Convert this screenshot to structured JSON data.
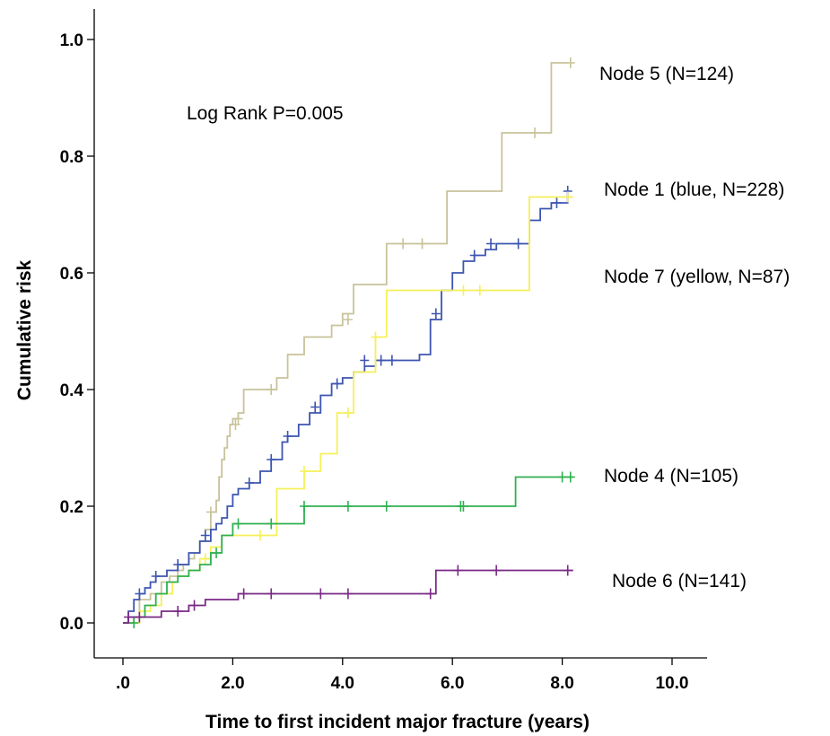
{
  "chart_data": {
    "type": "line",
    "title": "",
    "xlabel": "Time to first incident major fracture (years)",
    "ylabel": "Cumulative risk",
    "xlim": [
      -0.5,
      11
    ],
    "ylim": [
      -0.05,
      1.06
    ],
    "x_ticks": [
      0,
      2,
      4,
      6,
      8,
      10
    ],
    "x_tick_labels": [
      ".0",
      "2.0",
      "4.0",
      "6.0",
      "8.0",
      "10.0"
    ],
    "y_ticks": [
      0,
      0.2,
      0.4,
      0.6,
      0.8,
      1.0
    ],
    "y_tick_labels": [
      "0.0",
      "0.2",
      "0.4",
      "0.6",
      "0.8",
      "1.0"
    ],
    "grid": false,
    "annotation": "Log Rank P=0.005",
    "series": [
      {
        "name": "Node 5 (N=124)",
        "color": "#c8c39a",
        "x": [
          0,
          0.3,
          0.5,
          0.7,
          0.85,
          1.0,
          1.1,
          1.2,
          1.3,
          1.4,
          1.5,
          1.6,
          1.7,
          1.75,
          1.8,
          1.85,
          1.9,
          1.95,
          2.0,
          2.1,
          2.2,
          2.8,
          3.0,
          3.3,
          3.8,
          4.0,
          4.2,
          4.8,
          5.0,
          5.6,
          5.9,
          6.5,
          6.9,
          7.05,
          7.3,
          7.8,
          8.1
        ],
        "y": [
          0,
          0.04,
          0.05,
          0.07,
          0.08,
          0.09,
          0.1,
          0.11,
          0.12,
          0.14,
          0.16,
          0.19,
          0.21,
          0.25,
          0.28,
          0.3,
          0.32,
          0.34,
          0.35,
          0.36,
          0.4,
          0.42,
          0.46,
          0.49,
          0.51,
          0.53,
          0.58,
          0.65,
          0.65,
          0.65,
          0.74,
          0.74,
          0.84,
          0.84,
          0.84,
          0.96,
          0.96
        ],
        "censored": [
          [
            1.6,
            0.19
          ],
          [
            2.05,
            0.34
          ],
          [
            2.1,
            0.35
          ],
          [
            2.7,
            0.4
          ],
          [
            4.1,
            0.52
          ],
          [
            5.1,
            0.65
          ],
          [
            5.45,
            0.65
          ],
          [
            7.5,
            0.84
          ],
          [
            8.15,
            0.96
          ]
        ],
        "label": "Node 5 (N=124)"
      },
      {
        "name": "Node 1 (blue, N=228)",
        "color": "#3d55b0",
        "x": [
          0,
          0.1,
          0.2,
          0.3,
          0.4,
          0.5,
          0.6,
          0.8,
          1.0,
          1.2,
          1.4,
          1.6,
          1.7,
          1.8,
          1.9,
          2.0,
          2.1,
          2.3,
          2.5,
          2.7,
          2.9,
          3.0,
          3.2,
          3.4,
          3.6,
          3.8,
          4.0,
          4.2,
          4.4,
          4.6,
          5.0,
          5.4,
          5.6,
          5.8,
          6.0,
          6.2,
          6.4,
          6.6,
          6.8,
          7.0,
          7.4,
          7.6,
          7.8,
          8.0,
          8.1
        ],
        "y": [
          0,
          0.02,
          0.04,
          0.05,
          0.06,
          0.07,
          0.08,
          0.09,
          0.1,
          0.12,
          0.14,
          0.16,
          0.17,
          0.18,
          0.2,
          0.22,
          0.23,
          0.24,
          0.26,
          0.28,
          0.31,
          0.32,
          0.34,
          0.36,
          0.39,
          0.41,
          0.42,
          0.43,
          0.44,
          0.45,
          0.45,
          0.46,
          0.52,
          0.57,
          0.6,
          0.62,
          0.63,
          0.64,
          0.65,
          0.65,
          0.69,
          0.71,
          0.72,
          0.72,
          0.74
        ],
        "censored": [
          [
            0.3,
            0.05
          ],
          [
            0.6,
            0.08
          ],
          [
            1.0,
            0.1
          ],
          [
            1.5,
            0.15
          ],
          [
            2.3,
            0.24
          ],
          [
            2.7,
            0.28
          ],
          [
            3.0,
            0.32
          ],
          [
            3.5,
            0.37
          ],
          [
            3.9,
            0.41
          ],
          [
            4.4,
            0.45
          ],
          [
            4.7,
            0.45
          ],
          [
            4.9,
            0.45
          ],
          [
            5.7,
            0.53
          ],
          [
            6.4,
            0.63
          ],
          [
            6.7,
            0.65
          ],
          [
            7.2,
            0.65
          ],
          [
            7.9,
            0.72
          ],
          [
            8.1,
            0.74
          ]
        ],
        "label": "Node 1 (blue, N=228)"
      },
      {
        "name": "Node 7 (yellow, N=87)",
        "color": "#f5f05a",
        "x": [
          0,
          0.3,
          0.5,
          0.7,
          0.9,
          1.0,
          1.2,
          1.4,
          1.6,
          1.8,
          2.0,
          2.4,
          2.8,
          3.0,
          3.3,
          3.6,
          3.9,
          4.2,
          4.6,
          4.8,
          5.0,
          5.5,
          5.8,
          6.0,
          6.5,
          7.0,
          7.4,
          7.6,
          8.2
        ],
        "y": [
          0,
          0.02,
          0.03,
          0.05,
          0.07,
          0.08,
          0.09,
          0.11,
          0.13,
          0.15,
          0.15,
          0.15,
          0.23,
          0.23,
          0.26,
          0.29,
          0.36,
          0.43,
          0.49,
          0.57,
          0.57,
          0.57,
          0.57,
          0.57,
          0.57,
          0.57,
          0.73,
          0.73,
          0.73
        ],
        "censored": [
          [
            1.5,
            0.11
          ],
          [
            2.5,
            0.15
          ],
          [
            3.3,
            0.26
          ],
          [
            4.1,
            0.36
          ],
          [
            4.6,
            0.49
          ],
          [
            6.2,
            0.57
          ],
          [
            6.5,
            0.57
          ],
          [
            8.1,
            0.73
          ]
        ],
        "label": "Node 7 (yellow, N=87)"
      },
      {
        "name": "Node 4 (N=105)",
        "color": "#30b050",
        "x": [
          0,
          0.2,
          0.4,
          0.6,
          0.8,
          1.0,
          1.2,
          1.4,
          1.6,
          1.8,
          2.0,
          2.5,
          3.0,
          3.3,
          4.0,
          5.0,
          6.0,
          6.5,
          7.0,
          7.15,
          7.5,
          8.2
        ],
        "y": [
          0,
          0.01,
          0.03,
          0.05,
          0.07,
          0.08,
          0.09,
          0.1,
          0.12,
          0.15,
          0.17,
          0.17,
          0.17,
          0.2,
          0.2,
          0.2,
          0.2,
          0.2,
          0.2,
          0.25,
          0.25,
          0.25
        ],
        "censored": [
          [
            0.2,
            0.0
          ],
          [
            1.7,
            0.12
          ],
          [
            2.1,
            0.17
          ],
          [
            2.7,
            0.17
          ],
          [
            3.3,
            0.2
          ],
          [
            4.1,
            0.2
          ],
          [
            4.8,
            0.2
          ],
          [
            6.15,
            0.2
          ],
          [
            6.2,
            0.2
          ],
          [
            8.0,
            0.25
          ],
          [
            8.15,
            0.25
          ]
        ],
        "label": "Node 4 (N=105)"
      },
      {
        "name": "Node 6 (N=141)",
        "color": "#7a2a85",
        "x": [
          0,
          0.1,
          0.3,
          0.5,
          0.7,
          0.9,
          1.2,
          1.5,
          1.9,
          2.1,
          2.6,
          3.2,
          4.0,
          4.8,
          5.6,
          5.7,
          6.0,
          6.8,
          8.2
        ],
        "y": [
          0,
          0.01,
          0.01,
          0.01,
          0.02,
          0.02,
          0.03,
          0.04,
          0.04,
          0.05,
          0.05,
          0.05,
          0.05,
          0.05,
          0.05,
          0.09,
          0.09,
          0.09,
          0.09
        ],
        "censored": [
          [
            0.1,
            0.01
          ],
          [
            0.3,
            0.01
          ],
          [
            1.0,
            0.02
          ],
          [
            1.3,
            0.03
          ],
          [
            2.2,
            0.05
          ],
          [
            2.7,
            0.05
          ],
          [
            3.6,
            0.05
          ],
          [
            4.1,
            0.05
          ],
          [
            5.6,
            0.05
          ],
          [
            6.1,
            0.09
          ],
          [
            6.8,
            0.09
          ],
          [
            8.1,
            0.09
          ]
        ],
        "label": "Node 6 (N=141)"
      }
    ]
  }
}
